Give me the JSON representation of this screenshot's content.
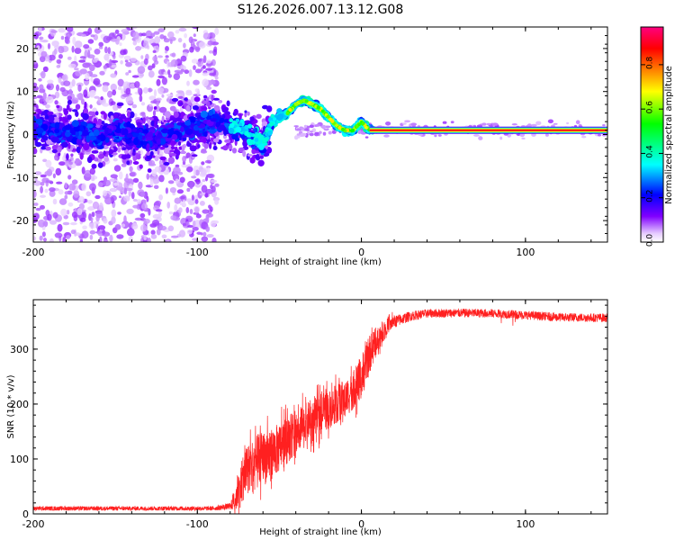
{
  "title": "S126.2026.007.13.12.G08",
  "chart_data": [
    {
      "type": "heatmap",
      "name": "spectrogram",
      "xlabel": "Height of straight line (km)",
      "ylabel": "Frequency (Hz)",
      "xlim": [
        -200,
        150
      ],
      "ylim": [
        -25,
        25
      ],
      "xticks": [
        -200,
        -100,
        0,
        100
      ],
      "yticks": [
        -20,
        -10,
        0,
        10,
        20
      ],
      "colorbar": {
        "label": "Normalized spectral amplitude",
        "range": [
          0,
          0.97
        ],
        "ticks": [
          "0.0",
          "0.2",
          "0.4",
          "0.6",
          "0.8"
        ],
        "colormap": [
          "#ffffff",
          "#e6ccff",
          "#8000ff",
          "#0000ff",
          "#00ffff",
          "#00ff00",
          "#ffff00",
          "#ff8000",
          "#ff0000",
          "#ff0080"
        ]
      },
      "ridge": {
        "x": [
          -200,
          -190,
          -180,
          -170,
          -160,
          -150,
          -140,
          -130,
          -120,
          -110,
          -100,
          -90,
          -80,
          -70,
          -65,
          -60,
          -55,
          -50,
          -45,
          -40,
          -35,
          -30,
          -25,
          -20,
          -15,
          -10,
          -5,
          0,
          5,
          10,
          20,
          40,
          60,
          80,
          100,
          120,
          150
        ],
        "y": [
          2,
          1,
          0,
          1,
          -1,
          1,
          0,
          -1,
          0,
          1,
          2,
          3,
          2,
          1,
          -1,
          -2,
          2,
          4,
          5,
          7,
          8,
          7,
          6,
          4,
          2,
          1,
          1,
          3,
          1,
          1,
          1,
          1,
          1,
          1,
          1,
          1,
          1
        ]
      },
      "carrier_start_x": 5,
      "carrier_freq": 1
    },
    {
      "type": "line",
      "name": "snr",
      "xlabel": "Height of straight line (km)",
      "ylabel": "SNR (10 * v/v)",
      "xlim": [
        -200,
        150
      ],
      "ylim": [
        0,
        390
      ],
      "xticks": [
        -200,
        -100,
        0,
        100
      ],
      "yticks": [
        0,
        100,
        200,
        300
      ],
      "color": "#ff2020",
      "envelope": {
        "x": [
          -200,
          -120,
          -90,
          -80,
          -75,
          -70,
          -65,
          -60,
          -50,
          -40,
          -30,
          -20,
          -10,
          -5,
          0,
          5,
          10,
          15,
          20,
          25,
          30,
          40,
          60,
          80,
          100,
          120,
          150
        ],
        "mean": [
          10,
          10,
          10,
          14,
          40,
          80,
          90,
          100,
          120,
          150,
          170,
          190,
          210,
          225,
          250,
          290,
          320,
          340,
          350,
          355,
          360,
          365,
          366,
          365,
          362,
          358,
          357
        ],
        "noise": [
          4,
          4,
          4,
          6,
          35,
          45,
          50,
          50,
          45,
          40,
          40,
          35,
          35,
          35,
          40,
          35,
          25,
          15,
          12,
          10,
          9,
          8,
          8,
          8,
          8,
          8,
          8
        ]
      }
    }
  ]
}
